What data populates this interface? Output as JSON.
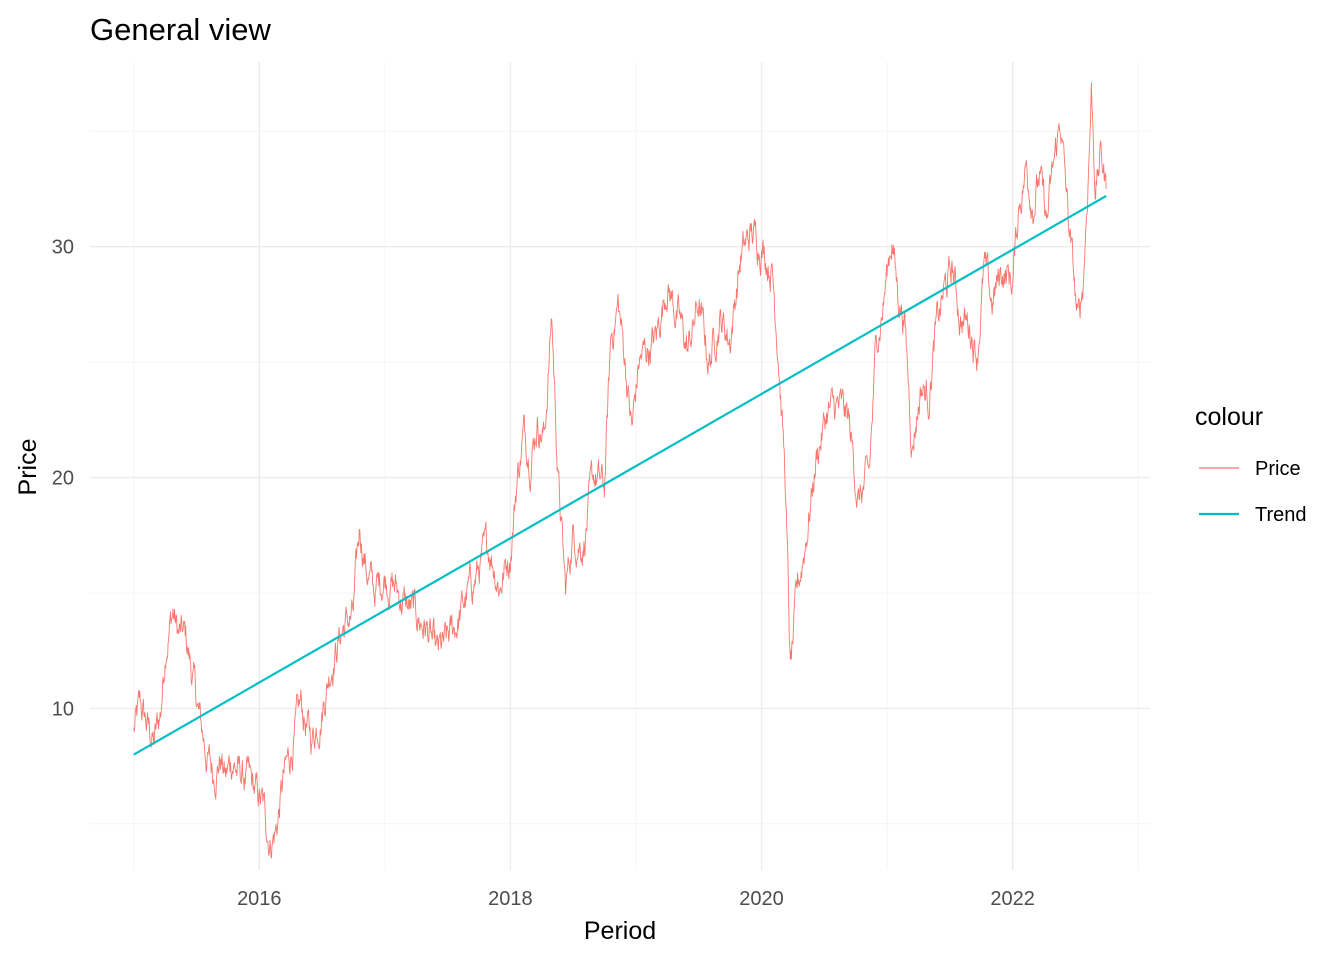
{
  "chart_data": {
    "type": "line",
    "title": "General view",
    "xlabel": "Period",
    "ylabel": "Price",
    "x_range": [
      "2015-01-01",
      "2022-09-30"
    ],
    "ylim": [
      3,
      38
    ],
    "x_ticks": [
      "2016",
      "2018",
      "2020",
      "2022"
    ],
    "y_ticks": [
      10,
      20,
      30
    ],
    "grid": true,
    "legend": {
      "title": "colour",
      "placement": "right"
    },
    "series": [
      {
        "name": "Price",
        "color": "#f8766d",
        "style": "noisy-daily",
        "points": [
          [
            "2015-01-01",
            9.0
          ],
          [
            "2015-01-20",
            10.0
          ],
          [
            "2015-02-10",
            9.2
          ],
          [
            "2015-03-01",
            8.5
          ],
          [
            "2015-03-20",
            9.8
          ],
          [
            "2015-04-05",
            13.0
          ],
          [
            "2015-04-25",
            14.2
          ],
          [
            "2015-05-10",
            13.2
          ],
          [
            "2015-06-01",
            13.0
          ],
          [
            "2015-06-20",
            11.5
          ],
          [
            "2015-07-10",
            9.6
          ],
          [
            "2015-08-01",
            8.0
          ],
          [
            "2015-08-20",
            7.2
          ],
          [
            "2015-09-10",
            7.9
          ],
          [
            "2015-09-25",
            7.0
          ],
          [
            "2015-10-15",
            7.8
          ],
          [
            "2015-11-01",
            7.2
          ],
          [
            "2015-12-01",
            6.8
          ],
          [
            "2016-01-10",
            5.8
          ],
          [
            "2016-02-01",
            4.3
          ],
          [
            "2016-02-20",
            4.8
          ],
          [
            "2016-03-10",
            6.8
          ],
          [
            "2016-04-01",
            8.0
          ],
          [
            "2016-05-01",
            10.0
          ],
          [
            "2016-06-01",
            8.6
          ],
          [
            "2016-07-01",
            10.0
          ],
          [
            "2016-08-01",
            12.2
          ],
          [
            "2016-09-01",
            13.5
          ],
          [
            "2016-10-01",
            14.0
          ],
          [
            "2016-10-20",
            17.8
          ],
          [
            "2016-11-10",
            16.0
          ],
          [
            "2016-12-01",
            15.0
          ],
          [
            "2017-01-01",
            15.8
          ],
          [
            "2017-02-01",
            15.2
          ],
          [
            "2017-03-01",
            14.5
          ],
          [
            "2017-04-01",
            14.0
          ],
          [
            "2017-05-01",
            13.5
          ],
          [
            "2017-06-01",
            12.2
          ],
          [
            "2017-07-01",
            12.8
          ],
          [
            "2017-08-01",
            13.8
          ],
          [
            "2017-09-01",
            15.0
          ],
          [
            "2017-10-01",
            16.0
          ],
          [
            "2017-11-01",
            17.0
          ],
          [
            "2017-12-01",
            15.4
          ],
          [
            "2018-01-01",
            16.8
          ],
          [
            "2018-01-20",
            20.0
          ],
          [
            "2018-02-10",
            22.0
          ],
          [
            "2018-03-01",
            21.0
          ],
          [
            "2018-03-20",
            22.5
          ],
          [
            "2018-04-10",
            21.8
          ],
          [
            "2018-05-01",
            27.0
          ],
          [
            "2018-05-20",
            20.0
          ],
          [
            "2018-06-10",
            15.0
          ],
          [
            "2018-07-01",
            17.5
          ],
          [
            "2018-08-01",
            17.2
          ],
          [
            "2018-09-01",
            20.0
          ],
          [
            "2018-10-01",
            19.5
          ],
          [
            "2018-10-20",
            26.0
          ],
          [
            "2018-11-10",
            27.5
          ],
          [
            "2018-12-01",
            25.0
          ],
          [
            "2018-12-20",
            22.0
          ],
          [
            "2019-01-10",
            25.0
          ],
          [
            "2019-02-01",
            25.5
          ],
          [
            "2019-03-01",
            26.0
          ],
          [
            "2019-04-01",
            28.5
          ],
          [
            "2019-05-01",
            27.0
          ],
          [
            "2019-06-01",
            25.5
          ],
          [
            "2019-07-01",
            27.5
          ],
          [
            "2019-08-01",
            25.0
          ],
          [
            "2019-09-01",
            27.0
          ],
          [
            "2019-10-01",
            26.0
          ],
          [
            "2019-11-01",
            29.5
          ],
          [
            "2019-12-01",
            30.5
          ],
          [
            "2020-01-01",
            30.2
          ],
          [
            "2020-02-01",
            29.0
          ],
          [
            "2020-02-20",
            25.5
          ],
          [
            "2020-03-10",
            20.0
          ],
          [
            "2020-03-25",
            11.5
          ],
          [
            "2020-04-15",
            15.0
          ],
          [
            "2020-05-10",
            17.5
          ],
          [
            "2020-06-10",
            21.0
          ],
          [
            "2020-07-10",
            22.8
          ],
          [
            "2020-08-10",
            23.0
          ],
          [
            "2020-09-10",
            22.5
          ],
          [
            "2020-10-10",
            19.0
          ],
          [
            "2020-11-10",
            20.0
          ],
          [
            "2020-12-01",
            26.0
          ],
          [
            "2020-12-20",
            27.5
          ],
          [
            "2021-01-15",
            30.5
          ],
          [
            "2021-02-01",
            28.0
          ],
          [
            "2021-02-20",
            27.0
          ],
          [
            "2021-03-15",
            21.5
          ],
          [
            "2021-04-10",
            24.0
          ],
          [
            "2021-05-01",
            23.5
          ],
          [
            "2021-05-20",
            26.0
          ],
          [
            "2021-06-15",
            28.0
          ],
          [
            "2021-07-10",
            29.0
          ],
          [
            "2021-08-01",
            27.0
          ],
          [
            "2021-09-01",
            26.5
          ],
          [
            "2021-09-20",
            25.5
          ],
          [
            "2021-10-10",
            29.0
          ],
          [
            "2021-11-01",
            27.5
          ],
          [
            "2021-12-01",
            29.0
          ],
          [
            "2022-01-01",
            28.5
          ],
          [
            "2022-01-20",
            32.0
          ],
          [
            "2022-02-10",
            33.5
          ],
          [
            "2022-03-01",
            32.0
          ],
          [
            "2022-03-20",
            33.0
          ],
          [
            "2022-04-10",
            31.0
          ],
          [
            "2022-05-01",
            33.5
          ],
          [
            "2022-05-20",
            35.5
          ],
          [
            "2022-06-10",
            31.5
          ],
          [
            "2022-06-25",
            29.0
          ],
          [
            "2022-07-10",
            26.5
          ],
          [
            "2022-07-25",
            28.5
          ],
          [
            "2022-08-05",
            32.0
          ],
          [
            "2022-08-18",
            36.8
          ],
          [
            "2022-08-30",
            32.5
          ],
          [
            "2022-09-15",
            34.0
          ],
          [
            "2022-09-30",
            32.5
          ]
        ]
      },
      {
        "name": "Trend",
        "color": "#00bfc4",
        "style": "straight",
        "points": [
          [
            "2015-01-01",
            8.0
          ],
          [
            "2022-09-30",
            32.2
          ]
        ]
      }
    ]
  }
}
